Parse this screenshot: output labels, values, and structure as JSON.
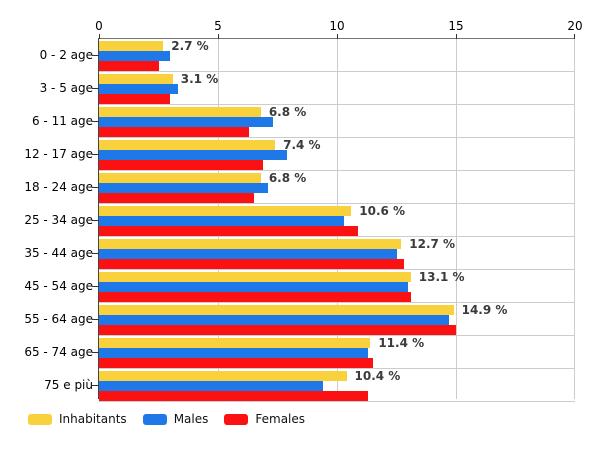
{
  "chart_data": {
    "type": "bar",
    "orientation": "horizontal",
    "title": "",
    "xlabel": "",
    "ylabel": "",
    "xlim": [
      0,
      20
    ],
    "x_ticks": [
      "0",
      "5",
      "10",
      "15",
      "20"
    ],
    "grid": true,
    "legend_position": "bottom",
    "categories": [
      "0 - 2 age",
      "3 - 5 age",
      "6 - 11 age",
      "12 - 17 age",
      "18 - 24 age",
      "25 - 34 age",
      "35 - 44 age",
      "45 - 54 age",
      "55 - 64 age",
      "65 - 74 age",
      "75 e più"
    ],
    "series": [
      {
        "name": "Inhabitants",
        "color": "#F8D13C",
        "values": [
          2.7,
          3.1,
          6.8,
          7.4,
          6.8,
          10.6,
          12.7,
          13.1,
          14.9,
          11.4,
          10.4
        ]
      },
      {
        "name": "Males",
        "color": "#1E78E8",
        "values": [
          3.0,
          3.3,
          7.3,
          7.9,
          7.1,
          10.3,
          12.5,
          13.0,
          14.7,
          11.3,
          9.4
        ]
      },
      {
        "name": "Females",
        "color": "#FB1111",
        "values": [
          2.5,
          3.0,
          6.3,
          6.9,
          6.5,
          10.9,
          12.8,
          13.1,
          15.0,
          11.5,
          11.3
        ]
      }
    ],
    "data_labels": [
      "2.7 %",
      "3.1 %",
      "6.8 %",
      "7.4 %",
      "6.8 %",
      "10.6 %",
      "12.7 %",
      "13.1 %",
      "14.9 %",
      "11.4 %",
      "10.4 %"
    ],
    "colors": {
      "grid": "#cccccc",
      "axis_top": "#777777",
      "axis_left": "#444444",
      "value_label": "#3b3b3b"
    }
  }
}
